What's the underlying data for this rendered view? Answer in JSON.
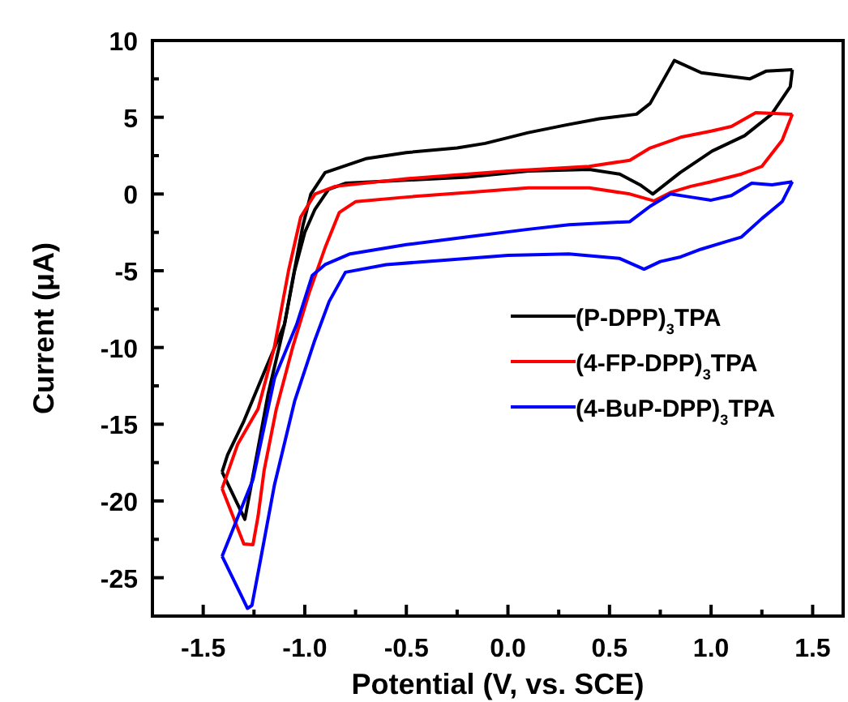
{
  "chart_data": {
    "type": "line",
    "xlabel": "Potential (V, vs. SCE)",
    "ylabel": "Current (μA)",
    "xlim": [
      -1.75,
      1.65
    ],
    "ylim": [
      -27.5,
      10
    ],
    "xticks": [
      {
        "value": -1.5,
        "label": "-1.5"
      },
      {
        "value": -1.25,
        "label": null
      },
      {
        "value": -1.0,
        "label": "-1.0"
      },
      {
        "value": -0.75,
        "label": null
      },
      {
        "value": -0.5,
        "label": "-0.5"
      },
      {
        "value": -0.25,
        "label": null
      },
      {
        "value": 0,
        "label": "0.0"
      },
      {
        "value": 0.25,
        "label": null
      },
      {
        "value": 0.5,
        "label": "0.5"
      },
      {
        "value": 0.75,
        "label": null
      },
      {
        "value": 1.0,
        "label": "1.0"
      },
      {
        "value": 1.25,
        "label": null
      },
      {
        "value": 1.5,
        "label": "1.5"
      }
    ],
    "yticks": [
      {
        "value": -25,
        "label": "-25"
      },
      {
        "value": -22.5,
        "label": null
      },
      {
        "value": -20,
        "label": "-20"
      },
      {
        "value": -17.5,
        "label": null
      },
      {
        "value": -15,
        "label": "-15"
      },
      {
        "value": -12.5,
        "label": null
      },
      {
        "value": -10,
        "label": "-10"
      },
      {
        "value": -7.5,
        "label": null
      },
      {
        "value": -5,
        "label": "-5"
      },
      {
        "value": -2.5,
        "label": null
      },
      {
        "value": 0,
        "label": "0"
      },
      {
        "value": 2.5,
        "label": null
      },
      {
        "value": 5,
        "label": "5"
      },
      {
        "value": 7.5,
        "label": null
      },
      {
        "value": 10,
        "label": "10"
      }
    ],
    "grid": false,
    "legend": "right",
    "marker": "none",
    "line_style": "solid",
    "series": [
      {
        "name": "(P-DPP)$_{3}$TPA",
        "color": "#000000",
        "x": [
          -1.407,
          -1.295,
          -1.25,
          -1.18,
          -1.1,
          -1.05,
          -1.0,
          -0.95,
          -0.883,
          -0.8,
          -0.5,
          -0.2,
          0.1,
          0.4,
          0.55,
          0.65,
          0.713,
          0.848,
          1.005,
          1.165,
          1.298,
          1.39,
          1.4
        ],
        "values": [
          -18.1,
          -21.2,
          -18,
          -13,
          -8.5,
          -5,
          -2.5,
          -1,
          0.3,
          0.7,
          0.9,
          1.1,
          1.5,
          1.6,
          1.3,
          0.6,
          0,
          1.4,
          2.8,
          3.8,
          5.2,
          7,
          8.1
        ]
      },
      {
        "color": "#000000",
        "x": [
          -1.407,
          -1.38,
          -1.3,
          -1.19,
          -1.1,
          -1.06,
          -1.01,
          -0.97,
          -0.9,
          -0.7,
          -0.5,
          -0.25,
          -0.112,
          0.1,
          0.287,
          0.45,
          0.633,
          0.7,
          0.819,
          0.952,
          1.19,
          1.27,
          1.4
        ],
        "values": [
          -18.1,
          -17,
          -14.8,
          -11.3,
          -8.5,
          -5.6,
          -2.1,
          0,
          1.4,
          2.3,
          2.7,
          3.0,
          3.3,
          4.0,
          4.5,
          4.9,
          5.2,
          5.9,
          8.7,
          7.9,
          7.5,
          8.0,
          8.1
        ]
      },
      {
        "name": "(4-FP-DPP)$_{3}$TPA",
        "color": "#ff0000",
        "x": [
          -1.407,
          -1.33,
          -1.23,
          -1.15,
          -1.08,
          -1.02,
          -0.95,
          -0.85,
          -0.5,
          0,
          0.4,
          0.6,
          0.7,
          0.85,
          1.0,
          1.1,
          1.22,
          1.4
        ],
        "values": [
          -19.2,
          -16.3,
          -14,
          -10,
          -5,
          -1.5,
          0,
          0.5,
          1.0,
          1.5,
          1.8,
          2.2,
          3.0,
          3.7,
          4.1,
          4.4,
          5.3,
          5.2
        ]
      },
      {
        "color": "#ff0000",
        "x": [
          -1.407,
          -1.3,
          -1.255,
          -1.23,
          -1.2,
          -1.14,
          -1.06,
          -0.98,
          -0.9,
          -0.83,
          -0.75,
          -0.5,
          -0.2,
          0.1,
          0.4,
          0.6,
          0.72,
          0.8,
          0.9,
          1.0,
          1.15,
          1.25,
          1.35,
          1.4
        ],
        "values": [
          -19.2,
          -22.8,
          -22.85,
          -21,
          -18,
          -14,
          -10,
          -6.5,
          -3.5,
          -1.2,
          -0.5,
          -0.2,
          0.1,
          0.4,
          0.4,
          0,
          -0.45,
          0.1,
          0.5,
          0.8,
          1.3,
          1.8,
          3.5,
          5.2
        ]
      },
      {
        "name": "(4-BuP-DPP)$_{3}$TPA",
        "color": "#0000ff",
        "x": [
          -1.407,
          -1.255,
          -1.149,
          -1.04,
          -0.963,
          -0.9,
          -0.777,
          -0.5,
          -0.2,
          0.1,
          0.3,
          0.6,
          0.7,
          0.8,
          0.9,
          1.0,
          1.1,
          1.2,
          1.3,
          1.4
        ],
        "values": [
          -23.6,
          -18.6,
          -12,
          -8.5,
          -5.3,
          -4.6,
          -3.9,
          -3.3,
          -2.8,
          -2.3,
          -2.0,
          -1.8,
          -0.8,
          0,
          -0.2,
          -0.4,
          -0.1,
          0.7,
          0.6,
          0.8
        ]
      },
      {
        "color": "#0000ff",
        "x": [
          -1.407,
          -1.3,
          -1.282,
          -1.26,
          -1.22,
          -1.15,
          -1.05,
          -0.95,
          -0.88,
          -0.8,
          -0.6,
          -0.3,
          0,
          0.3,
          0.55,
          0.67,
          0.75,
          0.85,
          0.95,
          1.05,
          1.15,
          1.25,
          1.35,
          1.4
        ],
        "values": [
          -23.6,
          -26.5,
          -27.0,
          -26.8,
          -24,
          -19,
          -13.5,
          -9.5,
          -7,
          -5.1,
          -4.6,
          -4.3,
          -4.0,
          -3.9,
          -4.2,
          -4.9,
          -4.4,
          -4.1,
          -3.6,
          -3.2,
          -2.8,
          -1.6,
          -0.5,
          0.8
        ]
      }
    ]
  }
}
